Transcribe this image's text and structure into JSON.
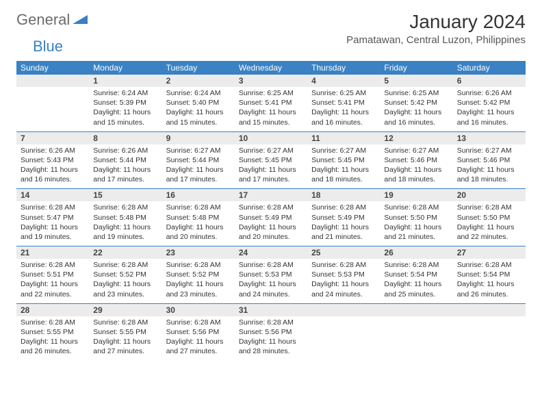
{
  "logo": {
    "general": "General",
    "blue": "Blue"
  },
  "title": "January 2024",
  "location": "Pamatawan, Central Luzon, Philippines",
  "dayHeaders": [
    "Sunday",
    "Monday",
    "Tuesday",
    "Wednesday",
    "Thursday",
    "Friday",
    "Saturday"
  ],
  "colors": {
    "headerBg": "#3a82c4",
    "headerText": "#ffffff",
    "dayNumBg": "#ececec",
    "border": "#3a82c4",
    "logoBlue": "#3a7fc4",
    "logoGray": "#6b6b6b"
  },
  "weeks": [
    [
      null,
      {
        "n": "1",
        "sunrise": "Sunrise: 6:24 AM",
        "sunset": "Sunset: 5:39 PM",
        "daylight": "Daylight: 11 hours and 15 minutes."
      },
      {
        "n": "2",
        "sunrise": "Sunrise: 6:24 AM",
        "sunset": "Sunset: 5:40 PM",
        "daylight": "Daylight: 11 hours and 15 minutes."
      },
      {
        "n": "3",
        "sunrise": "Sunrise: 6:25 AM",
        "sunset": "Sunset: 5:41 PM",
        "daylight": "Daylight: 11 hours and 15 minutes."
      },
      {
        "n": "4",
        "sunrise": "Sunrise: 6:25 AM",
        "sunset": "Sunset: 5:41 PM",
        "daylight": "Daylight: 11 hours and 16 minutes."
      },
      {
        "n": "5",
        "sunrise": "Sunrise: 6:25 AM",
        "sunset": "Sunset: 5:42 PM",
        "daylight": "Daylight: 11 hours and 16 minutes."
      },
      {
        "n": "6",
        "sunrise": "Sunrise: 6:26 AM",
        "sunset": "Sunset: 5:42 PM",
        "daylight": "Daylight: 11 hours and 16 minutes."
      }
    ],
    [
      {
        "n": "7",
        "sunrise": "Sunrise: 6:26 AM",
        "sunset": "Sunset: 5:43 PM",
        "daylight": "Daylight: 11 hours and 16 minutes."
      },
      {
        "n": "8",
        "sunrise": "Sunrise: 6:26 AM",
        "sunset": "Sunset: 5:44 PM",
        "daylight": "Daylight: 11 hours and 17 minutes."
      },
      {
        "n": "9",
        "sunrise": "Sunrise: 6:27 AM",
        "sunset": "Sunset: 5:44 PM",
        "daylight": "Daylight: 11 hours and 17 minutes."
      },
      {
        "n": "10",
        "sunrise": "Sunrise: 6:27 AM",
        "sunset": "Sunset: 5:45 PM",
        "daylight": "Daylight: 11 hours and 17 minutes."
      },
      {
        "n": "11",
        "sunrise": "Sunrise: 6:27 AM",
        "sunset": "Sunset: 5:45 PM",
        "daylight": "Daylight: 11 hours and 18 minutes."
      },
      {
        "n": "12",
        "sunrise": "Sunrise: 6:27 AM",
        "sunset": "Sunset: 5:46 PM",
        "daylight": "Daylight: 11 hours and 18 minutes."
      },
      {
        "n": "13",
        "sunrise": "Sunrise: 6:27 AM",
        "sunset": "Sunset: 5:46 PM",
        "daylight": "Daylight: 11 hours and 18 minutes."
      }
    ],
    [
      {
        "n": "14",
        "sunrise": "Sunrise: 6:28 AM",
        "sunset": "Sunset: 5:47 PM",
        "daylight": "Daylight: 11 hours and 19 minutes."
      },
      {
        "n": "15",
        "sunrise": "Sunrise: 6:28 AM",
        "sunset": "Sunset: 5:48 PM",
        "daylight": "Daylight: 11 hours and 19 minutes."
      },
      {
        "n": "16",
        "sunrise": "Sunrise: 6:28 AM",
        "sunset": "Sunset: 5:48 PM",
        "daylight": "Daylight: 11 hours and 20 minutes."
      },
      {
        "n": "17",
        "sunrise": "Sunrise: 6:28 AM",
        "sunset": "Sunset: 5:49 PM",
        "daylight": "Daylight: 11 hours and 20 minutes."
      },
      {
        "n": "18",
        "sunrise": "Sunrise: 6:28 AM",
        "sunset": "Sunset: 5:49 PM",
        "daylight": "Daylight: 11 hours and 21 minutes."
      },
      {
        "n": "19",
        "sunrise": "Sunrise: 6:28 AM",
        "sunset": "Sunset: 5:50 PM",
        "daylight": "Daylight: 11 hours and 21 minutes."
      },
      {
        "n": "20",
        "sunrise": "Sunrise: 6:28 AM",
        "sunset": "Sunset: 5:50 PM",
        "daylight": "Daylight: 11 hours and 22 minutes."
      }
    ],
    [
      {
        "n": "21",
        "sunrise": "Sunrise: 6:28 AM",
        "sunset": "Sunset: 5:51 PM",
        "daylight": "Daylight: 11 hours and 22 minutes."
      },
      {
        "n": "22",
        "sunrise": "Sunrise: 6:28 AM",
        "sunset": "Sunset: 5:52 PM",
        "daylight": "Daylight: 11 hours and 23 minutes."
      },
      {
        "n": "23",
        "sunrise": "Sunrise: 6:28 AM",
        "sunset": "Sunset: 5:52 PM",
        "daylight": "Daylight: 11 hours and 23 minutes."
      },
      {
        "n": "24",
        "sunrise": "Sunrise: 6:28 AM",
        "sunset": "Sunset: 5:53 PM",
        "daylight": "Daylight: 11 hours and 24 minutes."
      },
      {
        "n": "25",
        "sunrise": "Sunrise: 6:28 AM",
        "sunset": "Sunset: 5:53 PM",
        "daylight": "Daylight: 11 hours and 24 minutes."
      },
      {
        "n": "26",
        "sunrise": "Sunrise: 6:28 AM",
        "sunset": "Sunset: 5:54 PM",
        "daylight": "Daylight: 11 hours and 25 minutes."
      },
      {
        "n": "27",
        "sunrise": "Sunrise: 6:28 AM",
        "sunset": "Sunset: 5:54 PM",
        "daylight": "Daylight: 11 hours and 26 minutes."
      }
    ],
    [
      {
        "n": "28",
        "sunrise": "Sunrise: 6:28 AM",
        "sunset": "Sunset: 5:55 PM",
        "daylight": "Daylight: 11 hours and 26 minutes."
      },
      {
        "n": "29",
        "sunrise": "Sunrise: 6:28 AM",
        "sunset": "Sunset: 5:55 PM",
        "daylight": "Daylight: 11 hours and 27 minutes."
      },
      {
        "n": "30",
        "sunrise": "Sunrise: 6:28 AM",
        "sunset": "Sunset: 5:56 PM",
        "daylight": "Daylight: 11 hours and 27 minutes."
      },
      {
        "n": "31",
        "sunrise": "Sunrise: 6:28 AM",
        "sunset": "Sunset: 5:56 PM",
        "daylight": "Daylight: 11 hours and 28 minutes."
      },
      null,
      null,
      null
    ]
  ]
}
